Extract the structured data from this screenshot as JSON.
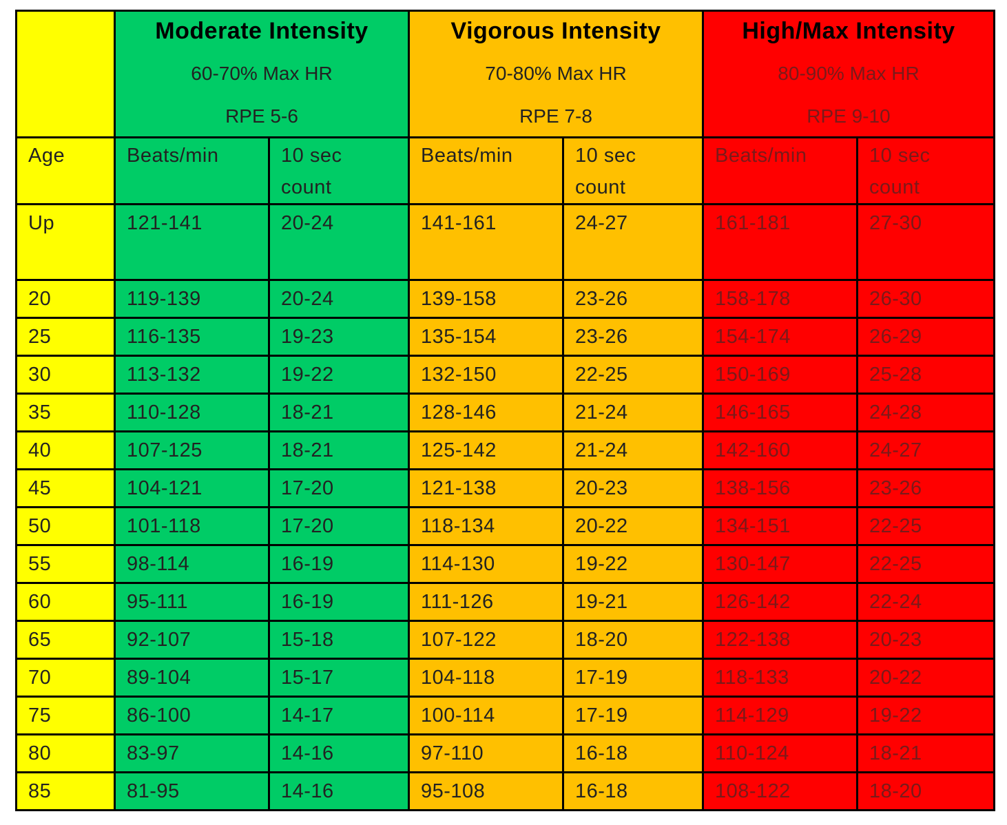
{
  "zones": [
    {
      "title": "Moderate Intensity",
      "range": "60-70% Max HR",
      "rpe": "RPE 5-6",
      "color": "#00cc66"
    },
    {
      "title": "Vigorous Intensity",
      "range": "70-80% Max HR",
      "rpe": "RPE 7-8",
      "color": "#ffc000"
    },
    {
      "title": "High/Max Intensity",
      "range": "80-90% Max HR",
      "rpe": "RPE 9-10",
      "color": "#ff0000"
    }
  ],
  "subheaders": {
    "age": "Age",
    "beats": "Beats/min",
    "count": "10 sec count"
  },
  "rows": [
    {
      "age": "Up",
      "cells": [
        "121-141",
        "20-24",
        "141-161",
        "24-27",
        "161-181",
        "27-30"
      ]
    },
    {
      "age": "20",
      "cells": [
        "119-139",
        "20-24",
        "139-158",
        "23-26",
        "158-178",
        "26-30"
      ]
    },
    {
      "age": "25",
      "cells": [
        "116-135",
        "19-23",
        "135-154",
        "23-26",
        "154-174",
        "26-29"
      ]
    },
    {
      "age": "30",
      "cells": [
        "113-132",
        "19-22",
        "132-150",
        "22-25",
        "150-169",
        "25-28"
      ]
    },
    {
      "age": "35",
      "cells": [
        "110-128",
        "18-21",
        "128-146",
        "21-24",
        "146-165",
        "24-28"
      ]
    },
    {
      "age": "40",
      "cells": [
        "107-125",
        "18-21",
        "125-142",
        "21-24",
        "142-160",
        "24-27"
      ]
    },
    {
      "age": "45",
      "cells": [
        "104-121",
        "17-20",
        "121-138",
        "20-23",
        "138-156",
        "23-26"
      ]
    },
    {
      "age": "50",
      "cells": [
        "101-118",
        "17-20",
        "118-134",
        "20-22",
        "134-151",
        "22-25"
      ]
    },
    {
      "age": "55",
      "cells": [
        "98-114",
        "16-19",
        "114-130",
        "19-22",
        "130-147",
        "22-25"
      ]
    },
    {
      "age": "60",
      "cells": [
        "95-111",
        "16-19",
        "111-126",
        "19-21",
        "126-142",
        "22-24"
      ]
    },
    {
      "age": "65",
      "cells": [
        "92-107",
        "15-18",
        "107-122",
        "18-20",
        "122-138",
        "20-23"
      ]
    },
    {
      "age": "70",
      "cells": [
        "89-104",
        "15-17",
        "104-118",
        "17-19",
        "118-133",
        "20-22"
      ]
    },
    {
      "age": "75",
      "cells": [
        "86-100",
        "14-17",
        "100-114",
        "17-19",
        "114-129",
        "19-22"
      ]
    },
    {
      "age": "80",
      "cells": [
        "83-97",
        "14-16",
        "97-110",
        "16-18",
        "110-124",
        "18-21"
      ]
    },
    {
      "age": "85",
      "cells": [
        "81-95",
        "14-16",
        "95-108",
        "16-18",
        "108-122",
        "18-20"
      ]
    }
  ],
  "colors": {
    "age_column": "#ffff00",
    "border": "#000000"
  }
}
